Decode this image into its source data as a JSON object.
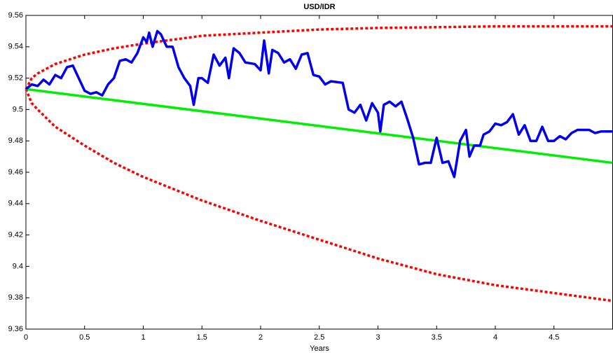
{
  "chart_data": {
    "type": "line",
    "title": "USD/IDR",
    "xlabel": "Years",
    "xlim": [
      0,
      5
    ],
    "ylim": [
      9.36,
      9.56
    ],
    "xticks": [
      0,
      0.5,
      1,
      1.5,
      2,
      2.5,
      3,
      3.5,
      4,
      4.5
    ],
    "yticks": [
      9.36,
      9.38,
      9.4,
      9.42,
      9.44,
      9.46,
      9.48,
      9.5,
      9.52,
      9.54,
      9.56
    ],
    "grid": false,
    "series": [
      {
        "color": "#ff0000",
        "dashed": true,
        "x": [
          0,
          0.05,
          0.1,
          0.25,
          0.5,
          0.75,
          1,
          1.5,
          2,
          2.5,
          3,
          3.5,
          4,
          4.5,
          5
        ],
        "values": [
          9.513,
          9.52,
          9.523,
          9.529,
          9.535,
          9.539,
          9.542,
          9.547,
          9.549,
          9.551,
          9.552,
          9.5525,
          9.553,
          9.553,
          9.553
        ]
      },
      {
        "color": "#ff0000",
        "dashed": true,
        "x": [
          0,
          0.05,
          0.1,
          0.25,
          0.5,
          0.75,
          1,
          1.5,
          2,
          2.5,
          3,
          3.5,
          4,
          4.5,
          5
        ],
        "values": [
          9.513,
          9.504,
          9.5,
          9.489,
          9.477,
          9.466,
          9.457,
          9.442,
          9.429,
          9.417,
          9.405,
          9.395,
          9.388,
          9.383,
          9.378
        ]
      },
      {
        "color": "#00ee00",
        "dashed": false,
        "x": [
          0,
          5
        ],
        "values": [
          9.513,
          9.466
        ]
      },
      {
        "color": "#0000ee",
        "dashed": false,
        "x": [
          0,
          0.05,
          0.1,
          0.15,
          0.2,
          0.25,
          0.3,
          0.35,
          0.4,
          0.45,
          0.5,
          0.55,
          0.6,
          0.65,
          0.7,
          0.75,
          0.8,
          0.85,
          0.9,
          0.95,
          1.0,
          1.03,
          1.05,
          1.08,
          1.12,
          1.15,
          1.2,
          1.25,
          1.3,
          1.35,
          1.4,
          1.43,
          1.47,
          1.5,
          1.55,
          1.6,
          1.65,
          1.7,
          1.73,
          1.77,
          1.82,
          1.87,
          1.95,
          2.0,
          2.03,
          2.07,
          2.1,
          2.15,
          2.2,
          2.25,
          2.3,
          2.35,
          2.4,
          2.45,
          2.5,
          2.55,
          2.6,
          2.7,
          2.75,
          2.8,
          2.85,
          2.9,
          2.95,
          3.0,
          3.02,
          3.05,
          3.1,
          3.15,
          3.2,
          3.25,
          3.3,
          3.35,
          3.4,
          3.45,
          3.5,
          3.55,
          3.6,
          3.65,
          3.7,
          3.75,
          3.78,
          3.82,
          3.87,
          3.9,
          3.95,
          4.0,
          4.05,
          4.1,
          4.15,
          4.2,
          4.25,
          4.3,
          4.35,
          4.4,
          4.45,
          4.5,
          4.55,
          4.6,
          4.65,
          4.7,
          4.8,
          4.85,
          4.9,
          5.0
        ],
        "values": [
          9.513,
          9.516,
          9.515,
          9.519,
          9.516,
          9.522,
          9.52,
          9.527,
          9.528,
          9.52,
          9.512,
          9.51,
          9.511,
          9.509,
          9.516,
          9.52,
          9.531,
          9.532,
          9.53,
          9.536,
          9.546,
          9.543,
          9.549,
          9.54,
          9.55,
          9.548,
          9.54,
          9.54,
          9.527,
          9.52,
          9.515,
          9.503,
          9.52,
          9.52,
          9.517,
          9.535,
          9.528,
          9.533,
          9.52,
          9.539,
          9.536,
          9.53,
          9.529,
          9.525,
          9.544,
          9.523,
          9.538,
          9.536,
          9.53,
          9.532,
          9.526,
          9.535,
          9.536,
          9.522,
          9.521,
          9.516,
          9.518,
          9.517,
          9.5,
          9.498,
          9.503,
          9.493,
          9.504,
          9.498,
          9.486,
          9.503,
          9.505,
          9.502,
          9.505,
          9.494,
          9.482,
          9.465,
          9.466,
          9.466,
          9.482,
          9.466,
          9.467,
          9.457,
          9.48,
          9.487,
          9.47,
          9.477,
          9.477,
          9.484,
          9.486,
          9.491,
          9.49,
          9.492,
          9.497,
          9.484,
          9.49,
          9.48,
          9.48,
          9.489,
          9.48,
          9.48,
          9.483,
          9.481,
          9.485,
          9.487,
          9.487,
          9.485,
          9.486,
          9.486
        ]
      }
    ]
  }
}
